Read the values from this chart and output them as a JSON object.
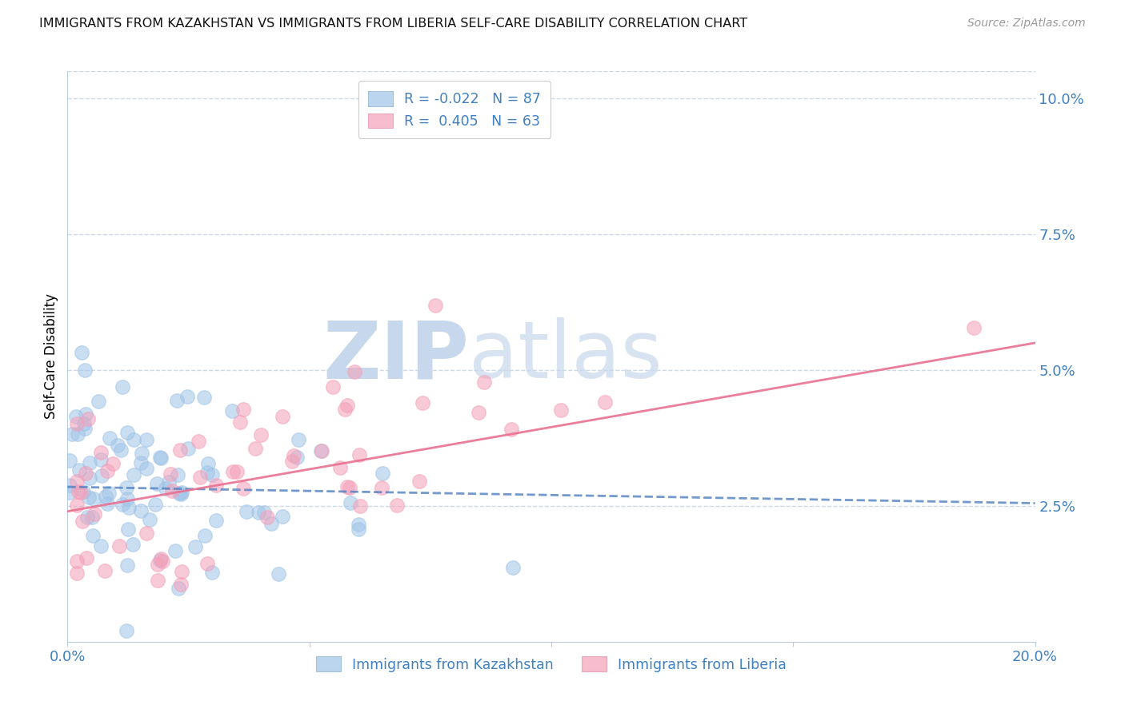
{
  "title": "IMMIGRANTS FROM KAZAKHSTAN VS IMMIGRANTS FROM LIBERIA SELF-CARE DISABILITY CORRELATION CHART",
  "source": "Source: ZipAtlas.com",
  "ylabel": "Self-Care Disability",
  "xlim": [
    0.0,
    0.2
  ],
  "ylim": [
    0.0,
    0.105
  ],
  "right_yticks": [
    0.0,
    0.025,
    0.05,
    0.075,
    0.1
  ],
  "right_yticklabels": [
    "",
    "2.5%",
    "5.0%",
    "7.5%",
    "10.0%"
  ],
  "xticks": [
    0.0,
    0.05,
    0.1,
    0.15,
    0.2
  ],
  "xticklabels": [
    "0.0%",
    "",
    "",
    "",
    "20.0%"
  ],
  "kazakhstan_color": "#a0c4e8",
  "liberia_color": "#f4a0b8",
  "kazakhstan_line_color": "#5080c0",
  "liberia_line_color": "#e87090",
  "watermark_zip_color": "#c8d8ec",
  "watermark_atlas_color": "#c8d8ec",
  "background_color": "#ffffff",
  "grid_color": "#ccd8e8",
  "title_color": "#111111",
  "source_color": "#999999",
  "tick_label_color": "#4080c0",
  "r_kazakhstan": -0.022,
  "n_kazakhstan": 87,
  "r_liberia": 0.405,
  "n_liberia": 63
}
